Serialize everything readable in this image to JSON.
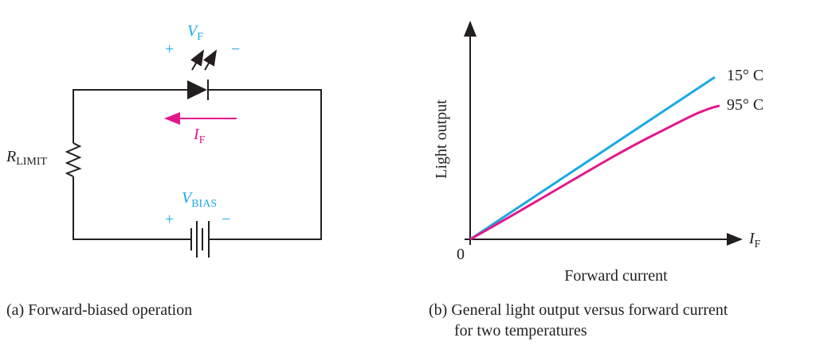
{
  "circuit": {
    "vf": {
      "main": "V",
      "sub": "F"
    },
    "plus_top": "+",
    "minus_top": "−",
    "if": {
      "main": "I",
      "sub": "F"
    },
    "r": {
      "main": "R",
      "sub": "LIMIT"
    },
    "vbias": {
      "main": "V",
      "sub": "BIAS"
    },
    "plus_bottom": "+",
    "minus_bottom": "−",
    "caption": "(a) Forward-biased operation"
  },
  "graph": {
    "y_label": "Light output",
    "x_label": "Forward current",
    "origin": "0",
    "x_axis": {
      "main": "I",
      "sub": "F"
    },
    "curves": [
      {
        "label": "15° C",
        "color": "#1ba9e4"
      },
      {
        "label": "95° C",
        "color": "#e5168a"
      }
    ],
    "caption": [
      "(b) General light output versus forward current",
      "for two temperatures"
    ]
  }
}
